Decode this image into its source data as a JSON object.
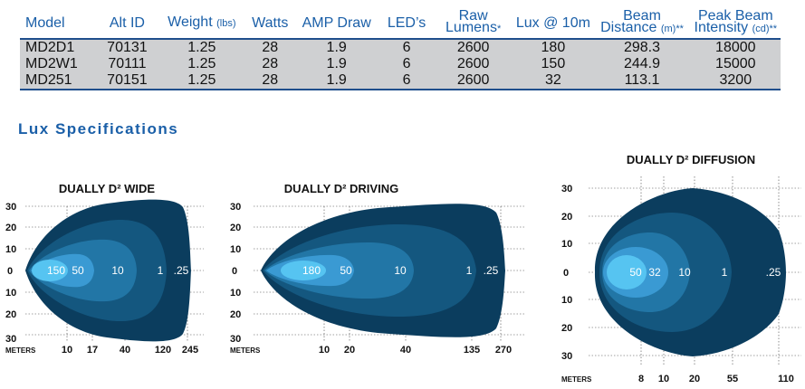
{
  "table": {
    "headers": [
      {
        "main": "Model",
        "unit": ""
      },
      {
        "main": "Alt ID",
        "unit": ""
      },
      {
        "main": "Weight",
        "unit": "(lbs)"
      },
      {
        "main": "Watts",
        "unit": ""
      },
      {
        "main": "AMP Draw",
        "unit": ""
      },
      {
        "main": "LED’s",
        "unit": ""
      },
      {
        "main": "Raw",
        "line2": "Lumens",
        "unit": "",
        "star": "*"
      },
      {
        "main": "Lux @ 10m",
        "unit": ""
      },
      {
        "main": "Beam",
        "line2": "Distance",
        "unit": "(m)",
        "star": "**"
      },
      {
        "main": "Peak Beam",
        "line2": "Intensity",
        "unit": "(cd)",
        "star": "**"
      }
    ],
    "rows": [
      [
        "MD2D1",
        "70131",
        "1.25",
        "28",
        "1.9",
        "6",
        "2600",
        "180",
        "298.3",
        "18000"
      ],
      [
        "MD2W1",
        "70111",
        "1.25",
        "28",
        "1.9",
        "6",
        "2600",
        "150",
        "244.9",
        "15000"
      ],
      [
        "MD251",
        "70151",
        "1.25",
        "28",
        "1.9",
        "6",
        "2600",
        "32",
        "113.1",
        "3200"
      ]
    ]
  },
  "section_title": "Lux Specifications",
  "charts": [
    {
      "title": "DUALLY D² WIDE",
      "y_ticks": [
        "30",
        "20",
        "10",
        "0",
        "10",
        "20",
        "30"
      ],
      "x_axis_label": "METERS",
      "x_ticks": [
        "10",
        "17",
        "40",
        "120",
        "245"
      ],
      "lux_labels": [
        "150",
        "50",
        "10",
        "1",
        ".25"
      ]
    },
    {
      "title": "DUALLY D² DRIVING",
      "y_ticks": [
        "30",
        "20",
        "10",
        "0",
        "10",
        "20",
        "30"
      ],
      "x_axis_label": "METERS",
      "x_ticks": [
        "10",
        "20",
        "40",
        "135",
        "270"
      ],
      "lux_labels": [
        "180",
        "50",
        "10",
        "1",
        ".25"
      ]
    },
    {
      "title": "DUALLY D² DIFFUSION",
      "y_ticks": [
        "30",
        "20",
        "10",
        "0",
        "10",
        "20",
        "30"
      ],
      "x_axis_label": "METERS",
      "x_ticks": [
        "8",
        "10",
        "20",
        "55",
        "110"
      ],
      "lux_labels": [
        "50",
        "32",
        "10",
        "1",
        ".25"
      ]
    }
  ],
  "colors": {
    "zone_025": "#0b3d5e",
    "zone_1": "#14577f",
    "zone_10": "#2276a6",
    "zone_50": "#3a9ad3",
    "zone_peak": "#56c4f1",
    "heading": "#1a5fa8",
    "row_bg": "#cfd0d2"
  }
}
